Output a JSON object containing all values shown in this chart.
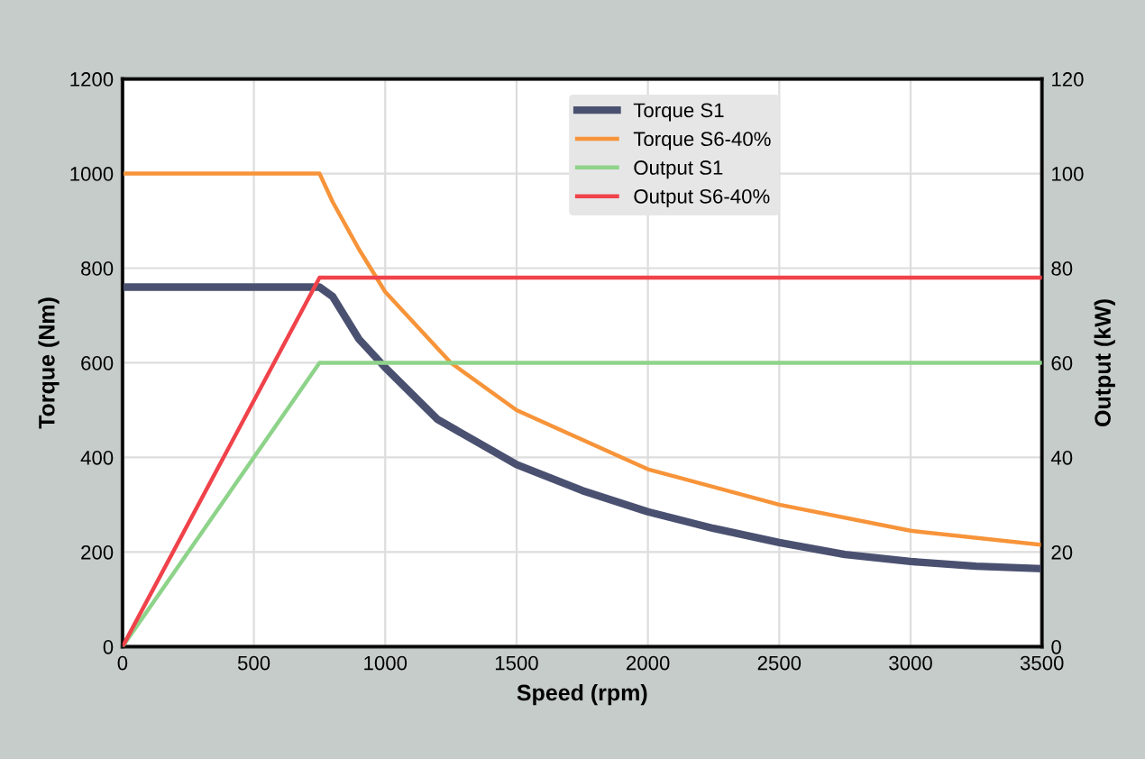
{
  "chart_data": {
    "type": "line",
    "xlabel": "Speed (rpm)",
    "ylabel": "Torque (Nm)",
    "y2label": "Output (kW)",
    "xlim": [
      0,
      3500
    ],
    "xticks": [
      0,
      500,
      1000,
      1500,
      2000,
      2500,
      3000,
      3500
    ],
    "ylim": [
      0,
      1200
    ],
    "yticks": [
      0,
      200,
      400,
      600,
      800,
      1000,
      1200
    ],
    "y2lim": [
      0,
      120
    ],
    "y2ticks": [
      0,
      20,
      40,
      60,
      80,
      100,
      120
    ],
    "grid": true,
    "legend": "top",
    "marker": "none",
    "line_style": "solid",
    "series": [
      {
        "name": "Torque S1",
        "color": "#4a5170",
        "x": [
          0,
          750,
          800,
          900,
          1000,
          1200,
          1500,
          1750,
          2000,
          2250,
          2500,
          2750,
          3000,
          3250,
          3500
        ],
        "values": [
          760,
          760,
          740,
          650,
          590,
          480,
          385,
          330,
          285,
          250,
          220,
          195,
          180,
          170,
          165
        ]
      },
      {
        "name": "Torque S6-40%",
        "color": "#f7943a",
        "x": [
          0,
          750,
          800,
          900,
          1000,
          1250,
          1500,
          2000,
          2500,
          3000,
          3500
        ],
        "values": [
          1000,
          1000,
          940,
          840,
          750,
          600,
          500,
          375,
          300,
          245,
          215
        ]
      },
      {
        "name": "Output S1",
        "color": "#8ed38a",
        "axis": "y2",
        "x": [
          0,
          750,
          3500
        ],
        "values": [
          0,
          60,
          60
        ]
      },
      {
        "name": "Output S6-40%",
        "color": "#f0424a",
        "axis": "y2",
        "x": [
          0,
          750,
          3500
        ],
        "values": [
          0,
          78,
          78
        ]
      }
    ]
  }
}
